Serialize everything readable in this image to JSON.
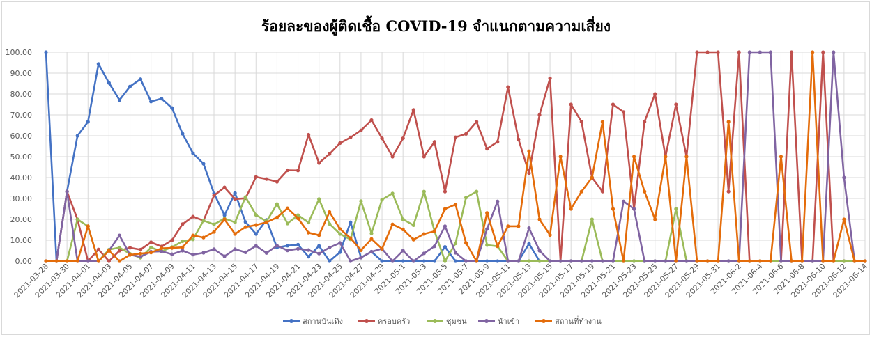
{
  "chart_data": {
    "type": "line",
    "title": "ร้อยละของผู้ติดเชื้อ COVID-19 จำแนกตามความเสี่ยง",
    "xlabel": "",
    "ylabel": "",
    "ylim": [
      0,
      100
    ],
    "y_ticks": [
      "0.00",
      "10.00",
      "20.00",
      "30.00",
      "40.00",
      "50.00",
      "60.00",
      "70.00",
      "80.00",
      "90.00",
      "100.00"
    ],
    "grid": true,
    "legend_position": "bottom",
    "x": [
      "2021-03-28",
      "2021-03-29",
      "2021-03-30",
      "2021-03-31",
      "2021-04-01",
      "2021-04-02",
      "2021-04-03",
      "2021-04-04",
      "2021-04-05",
      "2021-04-06",
      "2021-04-07",
      "2021-04-08",
      "2021-04-09",
      "2021-04-10",
      "2021-04-11",
      "2021-04-12",
      "2021-04-13",
      "2021-04-14",
      "2021-04-15",
      "2021-04-16",
      "2021-04-17",
      "2021-04-18",
      "2021-04-19",
      "2021-04-20",
      "2021-04-21",
      "2021-04-22",
      "2021-04-23",
      "2021-04-24",
      "2021-04-25",
      "2021-04-26",
      "2021-04-27",
      "2021-04-28",
      "2021-04-29",
      "2021-04-30",
      "2021-05-1",
      "2021-05-2",
      "2021-05-3",
      "2021-05-4",
      "2021-05-5",
      "2021-05-6",
      "2021-05-7",
      "2021-05-8",
      "2021-05-9",
      "2021-05-10",
      "2021-05-11",
      "2021-05-12",
      "2021-05-13",
      "2021-05-14",
      "2021-05-15",
      "2021-05-16",
      "2021-05-17",
      "2021-05-18",
      "2021-05-19",
      "2021-05-20",
      "2021-05-21",
      "2021-05-22",
      "2021-05-23",
      "2021-05-24",
      "2021-05-25",
      "2021-05-26",
      "2021-05-27",
      "2021-05-28",
      "2021-05-29",
      "2021-05-30",
      "2021-05-31",
      "2021-06-1",
      "2021-06-2",
      "2021-06-3",
      "2021-06-4",
      "2021-06-5",
      "2021-06-6",
      "2021-06-7",
      "2021-06-8",
      "2021-06-9",
      "2021-06-10",
      "2021-06-11",
      "2021-06-12",
      "2021-06-13",
      "2021-06-14"
    ],
    "x_tick_labels": [
      "2021-03-28",
      "2021-03-30",
      "2021-04-01",
      "2021-04-03",
      "2021-04-05",
      "2021-04-07",
      "2021-04-09",
      "2021-04-11",
      "2021-04-13",
      "2021-04-15",
      "2021-04-17",
      "2021-04-19",
      "2021-04-21",
      "2021-04-23",
      "2021-04-25",
      "2021-04-27",
      "2021-04-29",
      "2021-05-1",
      "2021-05-3",
      "2021-05-5",
      "2021-05-7",
      "2021-05-9",
      "2021-05-11",
      "2021-05-13",
      "2021-05-15",
      "2021-05-17",
      "2021-05-19",
      "2021-05-21",
      "2021-05-23",
      "2021-05-25",
      "2021-05-27",
      "2021-05-29",
      "2021-05-31",
      "2021-06-2",
      "2021-06-4",
      "2021-06-6",
      "2021-06-8",
      "2021-06-10",
      "2021-06-12",
      "2021-06-14"
    ],
    "series": [
      {
        "name": "สถานบันเทิง",
        "color": "#4472c4",
        "values": [
          100,
          0,
          33.3,
          60,
          66.7,
          94.4,
          85.3,
          77.1,
          83.6,
          87.1,
          76.4,
          77.8,
          73.3,
          61.0,
          51.6,
          46.6,
          32.4,
          22.0,
          32.6,
          18.7,
          13.0,
          19.7,
          6.5,
          7.4,
          7.9,
          2.1,
          7.3,
          0,
          4.3,
          18.6,
          1.7,
          4.5,
          0,
          0,
          0,
          0,
          0,
          0,
          6.8,
          0,
          0,
          0,
          0,
          0,
          0,
          0,
          8.3,
          0,
          0,
          0,
          0,
          0,
          0,
          0,
          0,
          0,
          0,
          0,
          0,
          0,
          0,
          0,
          0,
          0,
          0,
          0,
          0,
          0,
          0,
          0,
          0,
          0,
          0,
          0,
          0,
          0,
          0,
          0,
          0
        ]
      },
      {
        "name": "ครอบครัว",
        "color": "#c0504d",
        "values": [
          0,
          0,
          33.3,
          20,
          0,
          5.6,
          0,
          5.0,
          6.4,
          5.5,
          9.0,
          7.0,
          10.0,
          17.7,
          21.3,
          19.4,
          31.4,
          35.3,
          29.7,
          30.1,
          40.3,
          39.3,
          38.0,
          43.5,
          43.4,
          60.5,
          47.0,
          51.3,
          56.5,
          59.2,
          62.6,
          67.5,
          58.8,
          50.0,
          58.8,
          72.4,
          50.0,
          57.1,
          33.3,
          59.3,
          60.9,
          66.7,
          53.8,
          57.1,
          83.3,
          58.3,
          42.1,
          70.0,
          87.5,
          0,
          75.0,
          66.7,
          40.0,
          33.3,
          75.0,
          71.4,
          25.0,
          66.7,
          80.0,
          50.0,
          75.0,
          50.0,
          100,
          100,
          100,
          33.3,
          100,
          0,
          0,
          0,
          0,
          100,
          0,
          0,
          100,
          0,
          0,
          0,
          0
        ]
      },
      {
        "name": "ชุมชน",
        "color": "#9bbb59",
        "values": [
          0,
          0,
          0,
          20,
          16.7,
          0,
          5.5,
          6.5,
          3.5,
          1.6,
          6.5,
          4.7,
          6.7,
          9.5,
          10.4,
          19.4,
          17.6,
          20.4,
          18.6,
          30.7,
          22.1,
          19.0,
          27.3,
          18.0,
          22.0,
          18.5,
          29.7,
          17.8,
          13.0,
          10.4,
          28.7,
          13.3,
          29.4,
          32.4,
          20.0,
          17.2,
          33.3,
          14.3,
          0,
          8.5,
          30.4,
          33.3,
          7.7,
          7.1,
          0,
          0,
          0,
          0,
          0,
          0,
          0,
          0,
          20.0,
          0,
          0,
          0,
          0,
          0,
          0,
          0,
          25.0,
          0,
          0,
          0,
          0,
          0,
          0,
          0,
          0,
          0,
          0,
          0,
          0,
          0,
          0,
          0,
          0,
          0,
          0
        ]
      },
      {
        "name": "นำเข้า",
        "color": "#8064a2",
        "values": [
          0,
          0,
          33.3,
          0,
          0,
          0,
          5.0,
          12.3,
          3.0,
          2.1,
          4.5,
          4.7,
          3.3,
          5.0,
          3.1,
          4.0,
          5.7,
          2.3,
          5.7,
          4.2,
          7.3,
          3.9,
          7.4,
          5.1,
          5.9,
          5.3,
          3.6,
          6.5,
          8.7,
          0,
          1.7,
          4.5,
          5.9,
          0,
          5.0,
          0,
          3.7,
          7.1,
          16.7,
          4.0,
          0,
          0,
          15.4,
          28.6,
          0,
          0,
          15.8,
          5.0,
          0,
          0,
          0,
          0,
          0,
          0,
          0,
          28.6,
          25.0,
          0,
          0,
          0,
          0,
          0,
          0,
          0,
          0,
          0,
          0,
          100,
          100,
          100,
          0,
          0,
          0,
          0,
          0,
          100,
          40.0,
          0,
          0
        ]
      },
      {
        "name": "สถานที่ทำงาน",
        "color": "#e46c0a",
        "values": [
          0,
          0,
          0,
          0,
          16.7,
          0,
          5.0,
          0,
          3.0,
          3.6,
          4.1,
          6.1,
          6.3,
          6.6,
          12.3,
          11.3,
          14.0,
          20.0,
          13.0,
          16.3,
          17.3,
          18.6,
          20.9,
          25.3,
          20.5,
          13.6,
          12.4,
          23.5,
          15.4,
          11.0,
          5.2,
          10.6,
          5.9,
          17.6,
          15.2,
          10.3,
          13.0,
          14.3,
          25.0,
          27.1,
          8.7,
          0,
          23.1,
          7.1,
          16.7,
          16.7,
          52.6,
          20.0,
          12.5,
          50.0,
          25.0,
          33.3,
          40.0,
          66.7,
          25.0,
          0,
          50.0,
          33.3,
          20.0,
          50.0,
          0,
          50.0,
          0,
          0,
          0,
          66.7,
          0,
          0,
          0,
          0,
          50.0,
          0,
          0,
          100,
          0,
          0,
          20.0,
          0,
          0
        ]
      }
    ]
  }
}
